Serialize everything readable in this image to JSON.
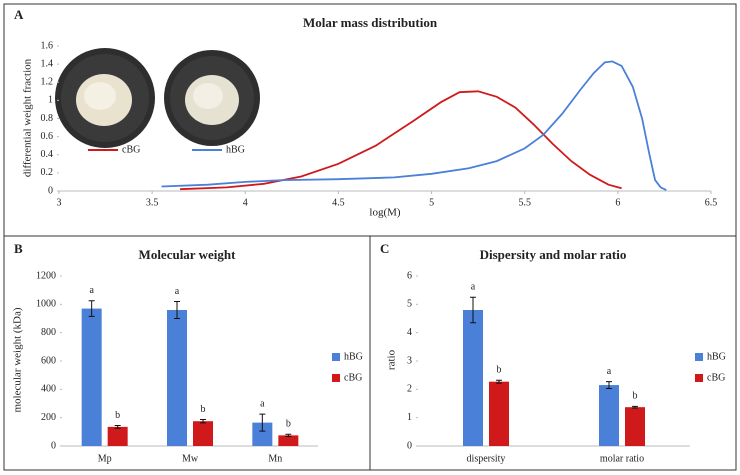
{
  "chart_data": [
    {
      "type": "line",
      "label": "A",
      "title": "Molar mass distribution",
      "x_label": "log(M)",
      "y_label": "differential weight fraction",
      "xlim": [
        3,
        6.5
      ],
      "xticks": [
        3,
        3.5,
        4,
        4.5,
        5,
        5.5,
        6,
        6.5
      ],
      "ylim": [
        0,
        1.6
      ],
      "yticks": [
        0,
        0.2,
        0.4,
        0.6,
        0.8,
        1,
        1.2,
        1.4,
        1.6
      ],
      "series": [
        {
          "name": "cBG",
          "color": "#d0191b",
          "x": [
            3.65,
            3.9,
            4.1,
            4.3,
            4.5,
            4.7,
            4.9,
            5.05,
            5.15,
            5.25,
            5.35,
            5.45,
            5.55,
            5.65,
            5.75,
            5.85,
            5.95,
            6.02
          ],
          "values": [
            0.02,
            0.04,
            0.08,
            0.16,
            0.3,
            0.5,
            0.77,
            0.98,
            1.09,
            1.1,
            1.04,
            0.92,
            0.73,
            0.52,
            0.33,
            0.18,
            0.07,
            0.03
          ]
        },
        {
          "name": "hBG",
          "color": "#4a80d8",
          "x": [
            3.55,
            3.8,
            4.0,
            4.2,
            4.5,
            4.8,
            5.0,
            5.2,
            5.35,
            5.5,
            5.6,
            5.7,
            5.8,
            5.87,
            5.93,
            5.97,
            6.02,
            6.08,
            6.13,
            6.17,
            6.2,
            6.23,
            6.26
          ],
          "values": [
            0.05,
            0.07,
            0.1,
            0.12,
            0.13,
            0.15,
            0.19,
            0.25,
            0.33,
            0.47,
            0.62,
            0.85,
            1.12,
            1.3,
            1.42,
            1.43,
            1.38,
            1.15,
            0.8,
            0.4,
            0.12,
            0.04,
            0.01
          ]
        }
      ]
    },
    {
      "type": "bar",
      "label": "B",
      "title": "Molecular weight",
      "y_label": "molecular weight (kDa)",
      "categories": [
        "Mp",
        "Mw",
        "Mn"
      ],
      "ylim": [
        0,
        1200
      ],
      "yticks": [
        0,
        200,
        400,
        600,
        800,
        1000,
        1200
      ],
      "series": [
        {
          "name": "hBG",
          "color": "#4a80d8",
          "values": [
            970,
            960,
            165
          ],
          "errors": [
            55,
            60,
            60
          ],
          "letters": [
            "a",
            "a",
            "a"
          ]
        },
        {
          "name": "cBG",
          "color": "#d0191b",
          "values": [
            135,
            175,
            75
          ],
          "errors": [
            10,
            12,
            8
          ],
          "letters": [
            "b",
            "b",
            "b"
          ]
        }
      ]
    },
    {
      "type": "bar",
      "label": "C",
      "title": "Dispersity and molar ratio",
      "y_label": "ratio",
      "categories": [
        "dispersity",
        "molar ratio"
      ],
      "ylim": [
        0,
        6
      ],
      "yticks": [
        0,
        1,
        2,
        3,
        4,
        5,
        6
      ],
      "series": [
        {
          "name": "hBG",
          "color": "#4a80d8",
          "values": [
            4.8,
            2.15
          ],
          "errors": [
            0.45,
            0.12
          ],
          "letters": [
            "a",
            "a"
          ]
        },
        {
          "name": "cBG",
          "color": "#d0191b",
          "values": [
            2.27,
            1.37
          ],
          "errors": [
            0.05,
            0.03
          ],
          "letters": [
            "b",
            "b"
          ]
        }
      ]
    }
  ]
}
